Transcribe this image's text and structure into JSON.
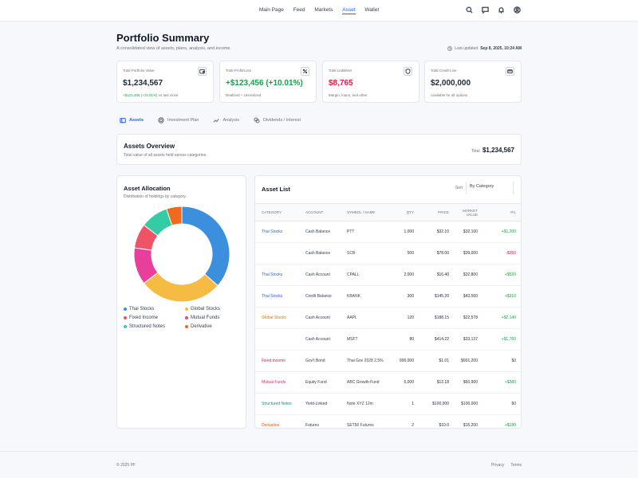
{
  "nav": {
    "links": [
      "Main Page",
      "Feed",
      "Markets",
      "Asset",
      "Wallet"
    ],
    "active": "Asset",
    "icons": [
      "search-icon",
      "chat-icon",
      "bell-icon",
      "user-icon"
    ]
  },
  "header": {
    "title": "Portfolio Summary",
    "subtitle": "A consolidated view of assets, plans, analysis, and income.",
    "updated_label": "Last updated",
    "updated_value": "Sep 8, 2025, 10:24 AM"
  },
  "stats": [
    {
      "label": "Total Portfolio Value",
      "value": "$1,234,567",
      "sub": "+$123,456 (+10.01%)",
      "sub2": "vs last close",
      "icon": "wallet-icon"
    },
    {
      "label": "Total Profit/Loss",
      "value": "+$123,456 (+10.01%)",
      "sub": "Realized + Unrealized",
      "icon": "percent-icon"
    },
    {
      "label": "Total Liabilities",
      "value": "$8,765",
      "sub": "Margin, loans, and other",
      "icon": "shield-icon"
    },
    {
      "label": "Total Credit Line",
      "value": "$2,000,000",
      "sub": "Available for all options",
      "icon": "credit-card-icon"
    }
  ],
  "tabs": [
    {
      "label": "Assets",
      "icon": "card-icon"
    },
    {
      "label": "Investment Plan",
      "icon": "target-icon"
    },
    {
      "label": "Analysis",
      "icon": "chart-icon"
    },
    {
      "label": "Dividends / Interest",
      "icon": "coins-icon"
    }
  ],
  "overview": {
    "title": "Assets Overview",
    "description": "Total value of all assets held across categories.",
    "total_label": "Total",
    "total_value": "$1,234,567"
  },
  "allocation": {
    "title": "Asset Allocation",
    "description": "Distribution of holdings by category.",
    "segments": [
      {
        "name": "Thai Stocks",
        "value": 35,
        "color": "#3b8fdd"
      },
      {
        "name": "Global Stocks",
        "value": 27,
        "color": "#f6bb42"
      },
      {
        "name": "Mutual Funds",
        "value": 12,
        "color": "#e83e9c"
      },
      {
        "name": "Fixed Income",
        "value": 8,
        "color": "#ef5366"
      },
      {
        "name": "Structured Notes",
        "value": 9,
        "color": "#35cba5"
      },
      {
        "name": "Derivative",
        "value": 5,
        "color": "#f06a1d"
      }
    ],
    "legend": [
      {
        "name": "Thai Stocks",
        "color": "#3b8fdd"
      },
      {
        "name": "Global Stocks",
        "color": "#f6bb42"
      },
      {
        "name": "Fixed Income",
        "color": "#ef5366"
      },
      {
        "name": "Mutual Funds",
        "color": "#e83e9c"
      },
      {
        "name": "Structured Notes",
        "color": "#35cba5"
      },
      {
        "name": "Derivative",
        "color": "#f06a1d"
      }
    ]
  },
  "asset_list": {
    "title": "Asset List",
    "sort_label": "Sort",
    "sort_value": "By Category",
    "columns": [
      "CATEGORY",
      "ACCOUNT",
      "SYMBOL / NAME",
      "QTY",
      "PRICE",
      "MARKET VALUE",
      "P/L"
    ],
    "rows": [
      {
        "category": "Thai Stocks",
        "cat_color": "#2563eb",
        "account": "Cash Balance",
        "symbol": "PTT",
        "qty": "1,000",
        "price": "$32.10",
        "mv": "$32,100",
        "pl": "+$1,200",
        "pl_color": "#16a34a"
      },
      {
        "category": "",
        "cat_color": "#2563eb",
        "account": "Cash Balance",
        "symbol": "SCB",
        "qty": "500",
        "price": "$78.00",
        "mv": "$39,000",
        "pl": "-$350",
        "pl_color": "#e11d48"
      },
      {
        "category": "Thai Stocks",
        "cat_color": "#2563eb",
        "account": "Cash Account",
        "symbol": "CPALL",
        "qty": "2,000",
        "price": "$16.40",
        "mv": "$32,800",
        "pl": "+$520",
        "pl_color": "#16a34a"
      },
      {
        "category": "Thai Stocks",
        "cat_color": "#2563eb",
        "account": "Credit Balance",
        "symbol": "KBANK",
        "qty": "300",
        "price": "$145.20",
        "mv": "$43,560",
        "pl": "+$310",
        "pl_color": "#16a34a"
      },
      {
        "category": "Global Stocks",
        "cat_color": "#d97706",
        "account": "Cash Account",
        "symbol": "AAPL",
        "qty": "120",
        "price": "$188.15",
        "mv": "$22,578",
        "pl": "+$2,140",
        "pl_color": "#16a34a"
      },
      {
        "category": "",
        "cat_color": "#d97706",
        "account": "Cash Account",
        "symbol": "MSFT",
        "qty": "80",
        "price": "$414.22",
        "mv": "$33,137",
        "pl": "+$1,760",
        "pl_color": "#16a34a"
      },
      {
        "category": "Fixed Income",
        "cat_color": "#e11d48",
        "account": "Gov't Bond",
        "symbol": "Thai Gov 2028 2.5%",
        "qty": "900,000",
        "price": "$1.01",
        "mv": "$901,200",
        "pl": "$0",
        "pl_color": "#374151"
      },
      {
        "category": "Mutual Funds",
        "cat_color": "#db2777",
        "account": "Equity Fund",
        "symbol": "ABC Growth Fund",
        "qty": "5,000",
        "price": "$12.18",
        "mv": "$60,900",
        "pl": "+$380",
        "pl_color": "#16a34a"
      },
      {
        "category": "Structured Notes",
        "cat_color": "#0d9488",
        "account": "Yield-Linked",
        "symbol": "Note XYZ 12m",
        "qty": "1",
        "price": "$100,000",
        "mv": "$100,000",
        "pl": "$0",
        "pl_color": "#374151"
      },
      {
        "category": "Derivative",
        "cat_color": "#ea580c",
        "account": "Futures",
        "symbol": "SET50 Futures",
        "qty": "2",
        "price": "$10.0",
        "mv": "$15,200",
        "pl": "+$180",
        "pl_color": "#16a34a"
      }
    ]
  },
  "footer": {
    "copyright": "© 2025 PF",
    "links": [
      "Privacy",
      "Terms"
    ]
  }
}
